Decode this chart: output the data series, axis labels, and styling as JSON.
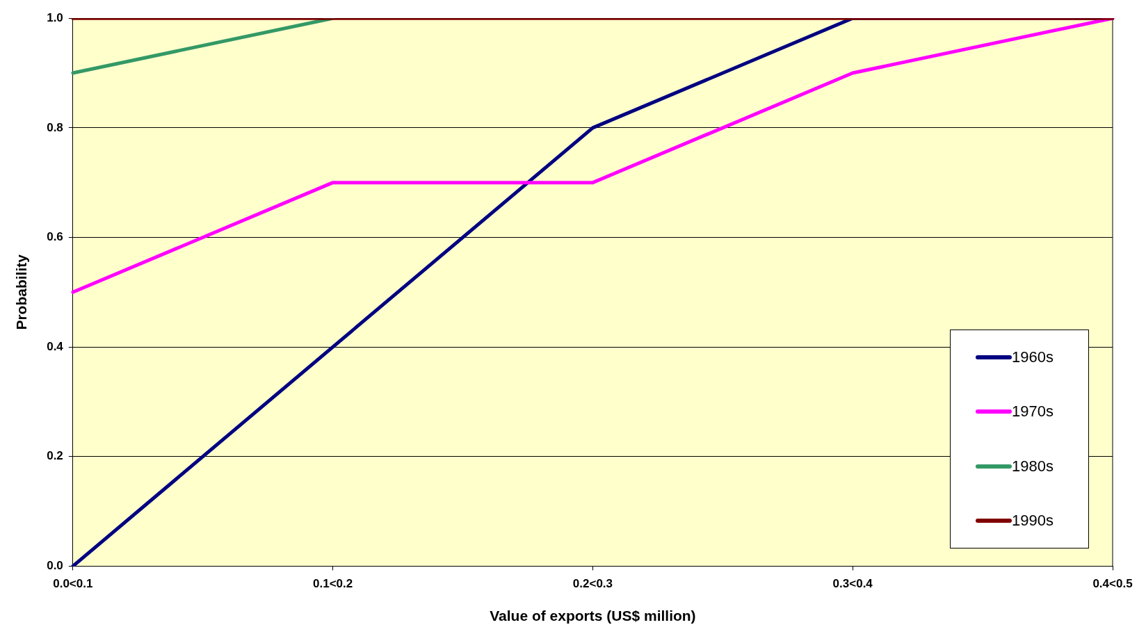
{
  "chart_data": {
    "type": "line",
    "xlabel": "Value of exports (US$ million)",
    "ylabel": "Probability",
    "categories": [
      "0.0<0.1",
      "0.1<0.2",
      "0.2<0.3",
      "0.3<0.4",
      "0.4<0.5"
    ],
    "series": [
      {
        "name": "1960s",
        "color": "#000080",
        "values": [
          0,
          0.4,
          0.8,
          1.0,
          1.0
        ]
      },
      {
        "name": "1970s",
        "color": "#ff00ff",
        "values": [
          0.5,
          0.7,
          0.7,
          0.9,
          1.0
        ]
      },
      {
        "name": "1980s",
        "color": "#339966",
        "values": [
          0.9,
          1.0,
          null,
          null,
          null
        ]
      },
      {
        "name": "1990s",
        "color": "#800000",
        "values": [
          1.0,
          1.0,
          1.0,
          1.0,
          1.0
        ]
      }
    ],
    "ylim": [
      0,
      1
    ],
    "yticks": [
      {
        "value": 0,
        "label": "0.0"
      },
      0.2,
      0.4,
      0.6,
      0.8,
      {
        "value": 1,
        "label": "1.0"
      }
    ],
    "grid": "y",
    "legend": "bottom right",
    "marker": "none",
    "line_style": "solid"
  }
}
